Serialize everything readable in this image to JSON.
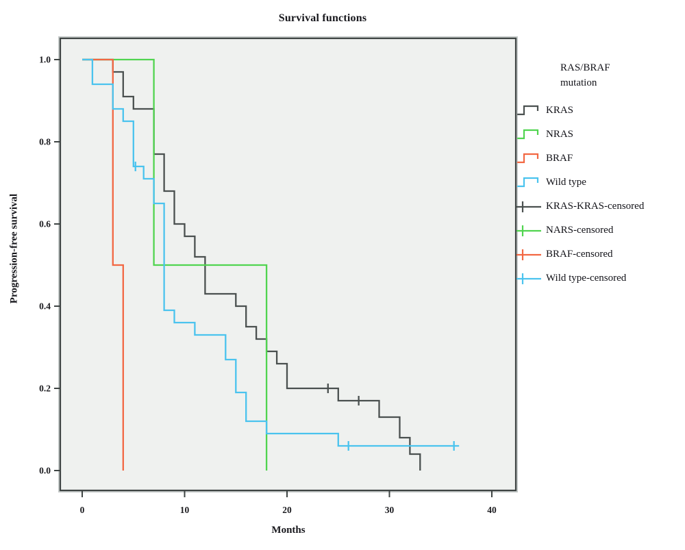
{
  "chart_data": {
    "type": "line",
    "subtype": "kaplan_meier_step_survival",
    "title": "Survival functions",
    "xlabel": "Months",
    "ylabel": "Progression-free survival",
    "legend_title": "RAS/BRAF mutation",
    "legend_position": "right",
    "grid": false,
    "plot_background": "#eff1ef",
    "frame_color": "#3e4443",
    "xlim": [
      -2.2,
      42.3
    ],
    "ylim": [
      -0.048,
      1.045
    ],
    "xticks": [
      0,
      10,
      20,
      30,
      40
    ],
    "yticks": [
      0.0,
      0.2,
      0.4,
      0.6,
      0.8,
      1.0
    ],
    "series": [
      {
        "name": "KRAS",
        "color": "#4a504f",
        "end_month": 33,
        "steps": [
          [
            0,
            1.0
          ],
          [
            3,
            0.97
          ],
          [
            4,
            0.91
          ],
          [
            5,
            0.88
          ],
          [
            7,
            0.77
          ],
          [
            8,
            0.68
          ],
          [
            9,
            0.6
          ],
          [
            10,
            0.57
          ],
          [
            11,
            0.52
          ],
          [
            12,
            0.43
          ],
          [
            15,
            0.4
          ],
          [
            16,
            0.35
          ],
          [
            17,
            0.32
          ],
          [
            18,
            0.29
          ],
          [
            19,
            0.26
          ],
          [
            20,
            0.2
          ],
          [
            25,
            0.17
          ],
          [
            29,
            0.13
          ],
          [
            31,
            0.08
          ],
          [
            32,
            0.04
          ],
          [
            33,
            0.0
          ]
        ],
        "censored": [
          [
            24,
            0.2
          ],
          [
            27,
            0.17
          ]
        ]
      },
      {
        "name": "NRAS",
        "color": "#50d44f",
        "end_month": 18,
        "steps": [
          [
            0,
            1.0
          ],
          [
            7,
            0.5
          ],
          [
            18,
            0.0
          ]
        ],
        "censored": []
      },
      {
        "name": "BRAF",
        "color": "#f26742",
        "end_month": 4,
        "steps": [
          [
            0,
            1.0
          ],
          [
            3,
            0.5
          ],
          [
            4,
            0.0
          ]
        ],
        "censored": []
      },
      {
        "name": "Wild type",
        "color": "#4ac3ee",
        "end_month": 36.8,
        "steps": [
          [
            0,
            1.0
          ],
          [
            1,
            0.94
          ],
          [
            3,
            0.88
          ],
          [
            4,
            0.85
          ],
          [
            5,
            0.74
          ],
          [
            6,
            0.71
          ],
          [
            7,
            0.65
          ],
          [
            8,
            0.39
          ],
          [
            9,
            0.36
          ],
          [
            11,
            0.33
          ],
          [
            14,
            0.27
          ],
          [
            15,
            0.19
          ],
          [
            16,
            0.12
          ],
          [
            18,
            0.09
          ],
          [
            25,
            0.06
          ]
        ],
        "censored": [
          [
            5.2,
            0.74
          ],
          [
            26,
            0.06
          ],
          [
            36.3,
            0.06
          ]
        ]
      }
    ],
    "legend_items": [
      {
        "label": "KRAS",
        "series": "KRAS",
        "glyph": "step"
      },
      {
        "label": "NRAS",
        "series": "NRAS",
        "glyph": "step"
      },
      {
        "label": "BRAF",
        "series": "BRAF",
        "glyph": "step"
      },
      {
        "label": "Wild type",
        "series": "Wild type",
        "glyph": "step"
      },
      {
        "label": "KRAS-KRAS-censored",
        "series": "KRAS",
        "glyph": "censor"
      },
      {
        "label": "NARS-censored",
        "series": "NRAS",
        "glyph": "censor"
      },
      {
        "label": "BRAF-censored",
        "series": "BRAF",
        "glyph": "censor"
      },
      {
        "label": "Wild type-censored",
        "series": "Wild type",
        "glyph": "censor"
      }
    ]
  }
}
